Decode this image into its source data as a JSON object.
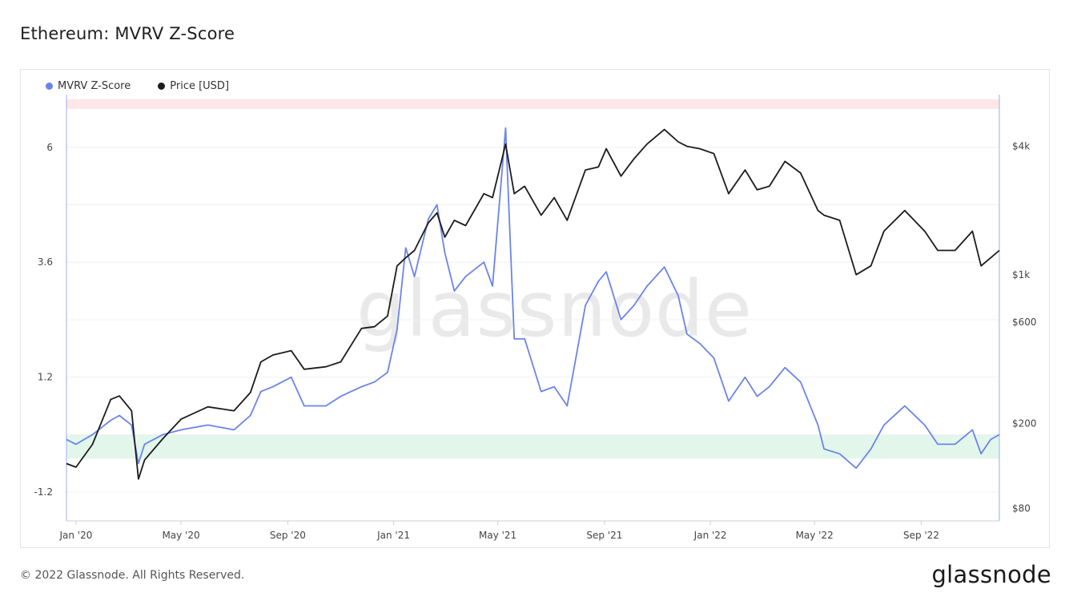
{
  "title": "Ethereum: MVRV Z-Score",
  "footer": {
    "copyright": "© 2022 Glassnode. All Rights Reserved.",
    "logo": "glassnode"
  },
  "watermark": "glassnode",
  "chart_data": {
    "type": "line",
    "legend_position": "top-left",
    "legend": [
      {
        "name": "MVRV Z-Score",
        "color": "#6b84e8"
      },
      {
        "name": "Price [USD]",
        "color": "#1c1c1c"
      }
    ],
    "x_ticks": [
      "Jan '20",
      "May '20",
      "Sep '20",
      "Jan '21",
      "May '21",
      "Sep '21",
      "Jan '22",
      "May '22",
      "Sep '22"
    ],
    "x_tick_dates": [
      "2020-01-01",
      "2020-05-01",
      "2020-09-01",
      "2021-01-01",
      "2021-05-01",
      "2021-09-01",
      "2022-01-01",
      "2022-05-01",
      "2022-09-01"
    ],
    "x_range": [
      "2019-12-21",
      "2022-11-30"
    ],
    "left_axis": {
      "ticks": [
        "-1.2",
        "1.2",
        "3.6",
        "6"
      ],
      "ylim": [
        -1.8,
        7.1
      ]
    },
    "right_axis": {
      "ticks": [
        "$80",
        "$200",
        "$600",
        "$1k",
        "$4k"
      ],
      "scale": "log",
      "ylim": [
        70,
        7000
      ]
    },
    "bands": [
      {
        "name": "high",
        "from": 7.0,
        "to": 6.8,
        "color": "#fde6e8"
      },
      {
        "name": "low",
        "from": 0.0,
        "to": -0.5,
        "color": "#e3f6ec"
      }
    ],
    "series": [
      {
        "name": "MVRV Z-Score",
        "axis": "left",
        "color": "#6b84e8",
        "x": [
          "2019-12-21",
          "2020-01-01",
          "2020-01-20",
          "2020-02-10",
          "2020-02-20",
          "2020-03-05",
          "2020-03-13",
          "2020-03-20",
          "2020-04-10",
          "2020-05-01",
          "2020-06-01",
          "2020-07-01",
          "2020-07-20",
          "2020-08-01",
          "2020-08-15",
          "2020-09-05",
          "2020-09-20",
          "2020-10-15",
          "2020-11-01",
          "2020-11-25",
          "2020-12-10",
          "2020-12-25",
          "2021-01-05",
          "2021-01-15",
          "2021-01-25",
          "2021-02-10",
          "2021-02-20",
          "2021-03-01",
          "2021-03-12",
          "2021-03-25",
          "2021-04-15",
          "2021-04-25",
          "2021-05-10",
          "2021-05-20",
          "2021-06-01",
          "2021-06-20",
          "2021-07-05",
          "2021-07-20",
          "2021-08-10",
          "2021-08-25",
          "2021-09-03",
          "2021-09-20",
          "2021-10-05",
          "2021-10-20",
          "2021-11-09",
          "2021-11-25",
          "2021-12-05",
          "2021-12-20",
          "2022-01-05",
          "2022-01-22",
          "2022-02-10",
          "2022-02-24",
          "2022-03-10",
          "2022-03-28",
          "2022-04-15",
          "2022-05-05",
          "2022-05-12",
          "2022-05-30",
          "2022-06-18",
          "2022-07-05",
          "2022-07-20",
          "2022-08-13",
          "2022-09-05",
          "2022-09-20",
          "2022-10-10",
          "2022-10-30",
          "2022-11-09",
          "2022-11-20",
          "2022-11-30"
        ],
        "y": [
          -0.1,
          -0.2,
          0.0,
          0.3,
          0.4,
          0.2,
          -0.6,
          -0.2,
          0.0,
          0.1,
          0.2,
          0.1,
          0.4,
          0.9,
          1.0,
          1.2,
          0.6,
          0.6,
          0.8,
          1.0,
          1.1,
          1.3,
          2.2,
          3.9,
          3.3,
          4.5,
          4.8,
          3.8,
          3.0,
          3.3,
          3.6,
          3.1,
          6.4,
          2.0,
          2.0,
          0.9,
          1.0,
          0.6,
          2.7,
          3.2,
          3.4,
          2.4,
          2.7,
          3.1,
          3.5,
          2.9,
          2.1,
          1.9,
          1.6,
          0.7,
          1.2,
          0.8,
          1.0,
          1.4,
          1.1,
          0.2,
          -0.3,
          -0.4,
          -0.7,
          -0.3,
          0.2,
          0.6,
          0.2,
          -0.2,
          -0.2,
          0.1,
          -0.4,
          -0.1,
          0.0
        ]
      },
      {
        "name": "Price [USD]",
        "axis": "right",
        "color": "#1c1c1c",
        "x": [
          "2019-12-21",
          "2020-01-01",
          "2020-01-20",
          "2020-02-10",
          "2020-02-20",
          "2020-03-05",
          "2020-03-13",
          "2020-03-20",
          "2020-04-10",
          "2020-05-01",
          "2020-06-01",
          "2020-07-01",
          "2020-07-20",
          "2020-08-01",
          "2020-08-15",
          "2020-09-05",
          "2020-09-20",
          "2020-10-15",
          "2020-11-01",
          "2020-11-25",
          "2020-12-10",
          "2020-12-25",
          "2021-01-05",
          "2021-01-15",
          "2021-01-25",
          "2021-02-10",
          "2021-02-20",
          "2021-03-01",
          "2021-03-12",
          "2021-03-25",
          "2021-04-15",
          "2021-04-25",
          "2021-05-10",
          "2021-05-20",
          "2021-06-01",
          "2021-06-20",
          "2021-07-05",
          "2021-07-20",
          "2021-08-10",
          "2021-08-25",
          "2021-09-03",
          "2021-09-20",
          "2021-10-05",
          "2021-10-20",
          "2021-11-09",
          "2021-11-25",
          "2021-12-05",
          "2021-12-20",
          "2022-01-05",
          "2022-01-22",
          "2022-02-10",
          "2022-02-24",
          "2022-03-10",
          "2022-03-28",
          "2022-04-15",
          "2022-05-05",
          "2022-05-12",
          "2022-05-30",
          "2022-06-18",
          "2022-07-05",
          "2022-07-20",
          "2022-08-13",
          "2022-09-05",
          "2022-09-20",
          "2022-10-10",
          "2022-10-30",
          "2022-11-09",
          "2022-11-20",
          "2022-11-30"
        ],
        "y": [
          130,
          125,
          160,
          260,
          270,
          230,
          110,
          135,
          170,
          210,
          240,
          230,
          280,
          390,
          420,
          440,
          360,
          370,
          390,
          560,
          570,
          640,
          1100,
          1200,
          1300,
          1750,
          1950,
          1500,
          1800,
          1700,
          2400,
          2300,
          4100,
          2400,
          2600,
          1900,
          2300,
          1800,
          3100,
          3200,
          3900,
          2900,
          3500,
          4100,
          4800,
          4200,
          4000,
          3900,
          3700,
          2400,
          3100,
          2500,
          2600,
          3400,
          3000,
          2000,
          1900,
          1800,
          1000,
          1100,
          1600,
          2000,
          1600,
          1300,
          1300,
          1600,
          1100,
          1200,
          1300
        ]
      }
    ]
  }
}
